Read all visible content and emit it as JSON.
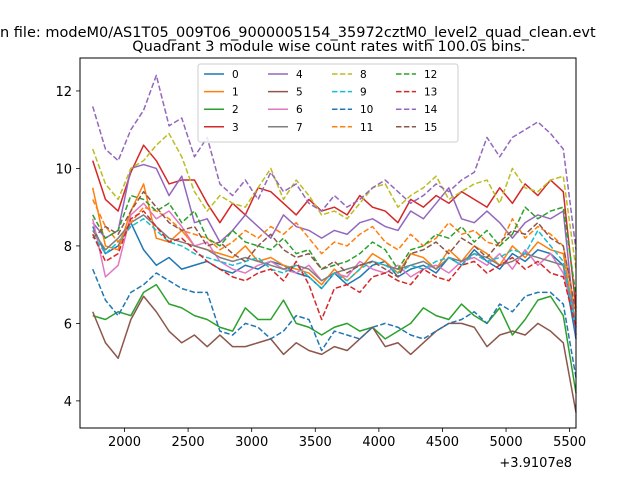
{
  "chart_data": {
    "type": "line",
    "suptitle": "n file: modeM0/AS1T05_009T06_9000005154_35972cztM0_level2_quad_clean.evt",
    "title": "Quadrant 3 module wise count rates with 100.0s bins.",
    "xlabel": "",
    "ylabel": "",
    "x_offset_label": "+3.9107e8",
    "xlim": [
      1650,
      5550
    ],
    "ylim": [
      3.3,
      12.85
    ],
    "xticks": [
      2000,
      2500,
      3000,
      3500,
      4000,
      4500,
      5000,
      5500
    ],
    "yticks": [
      4,
      6,
      8,
      10,
      12
    ],
    "x_start": 1750,
    "x_step": 100,
    "legend": {
      "placement": "top-center",
      "ncol": 4
    },
    "series": [
      {
        "name": "0",
        "color": "#1f77b4",
        "dash": "solid",
        "values": [
          8.5,
          7.8,
          8.0,
          8.6,
          7.9,
          7.5,
          7.7,
          7.4,
          7.5,
          7.6,
          7.4,
          7.3,
          7.5,
          7.4,
          7.6,
          7.5,
          7.3,
          7.2,
          6.9,
          7.3,
          7.0,
          7.2,
          7.5,
          7.6,
          7.2,
          7.4,
          7.5,
          7.3,
          7.7,
          7.5,
          7.9,
          7.6,
          7.4,
          7.8,
          7.6,
          7.9,
          7.8,
          7.5,
          5.6
        ]
      },
      {
        "name": "1",
        "color": "#ff7f0e",
        "dash": "solid",
        "values": [
          9.5,
          8.0,
          7.9,
          8.9,
          9.6,
          8.2,
          8.1,
          8.4,
          8.0,
          7.9,
          7.8,
          7.7,
          8.0,
          7.6,
          7.7,
          7.5,
          7.4,
          7.3,
          7.0,
          7.4,
          7.1,
          7.4,
          7.8,
          7.6,
          7.3,
          7.8,
          7.7,
          7.4,
          7.9,
          7.6,
          8.0,
          7.8,
          7.5,
          8.0,
          7.7,
          8.1,
          7.9,
          7.8,
          5.9
        ]
      },
      {
        "name": "2",
        "color": "#2ca02c",
        "dash": "solid",
        "values": [
          6.2,
          6.1,
          6.3,
          6.2,
          6.8,
          7.0,
          6.5,
          6.4,
          6.2,
          6.1,
          5.9,
          5.8,
          6.4,
          6.1,
          6.1,
          6.6,
          6.0,
          5.9,
          5.7,
          5.9,
          6.0,
          5.8,
          5.9,
          5.6,
          5.8,
          6.0,
          6.4,
          6.2,
          6.1,
          6.5,
          6.2,
          6.0,
          6.4,
          5.7,
          6.1,
          6.6,
          6.7,
          6.2,
          4.2
        ]
      },
      {
        "name": "3",
        "color": "#d62728",
        "dash": "solid",
        "values": [
          10.2,
          9.2,
          8.9,
          9.9,
          10.6,
          10.2,
          9.6,
          9.7,
          9.7,
          9.1,
          8.6,
          9.1,
          8.8,
          9.5,
          9.4,
          9.1,
          8.8,
          9.2,
          8.9,
          9.0,
          8.8,
          9.3,
          9.0,
          8.9,
          8.6,
          9.2,
          9.0,
          9.3,
          9.1,
          9.4,
          9.2,
          9.0,
          9.5,
          9.1,
          9.6,
          9.3,
          9.7,
          9.4,
          6.4
        ]
      },
      {
        "name": "4",
        "color": "#9467bd",
        "dash": "solid",
        "values": [
          8.6,
          8.2,
          8.4,
          10.0,
          10.1,
          10.0,
          9.3,
          9.8,
          8.6,
          8.7,
          8.1,
          8.4,
          8.8,
          8.5,
          8.2,
          8.8,
          8.5,
          8.4,
          8.2,
          8.4,
          8.3,
          8.6,
          8.7,
          8.5,
          8.4,
          8.9,
          8.7,
          9.1,
          9.5,
          8.7,
          8.6,
          8.9,
          8.6,
          8.2,
          8.6,
          8.8,
          8.7,
          8.9,
          5.7
        ]
      },
      {
        "name": "5",
        "color": "#8c564b",
        "dash": "solid",
        "values": [
          6.3,
          5.5,
          5.1,
          6.1,
          6.7,
          6.3,
          5.8,
          5.5,
          5.7,
          5.4,
          5.7,
          5.4,
          5.4,
          5.5,
          5.6,
          5.2,
          5.5,
          5.3,
          5.2,
          5.4,
          5.3,
          5.6,
          5.9,
          5.4,
          5.5,
          5.2,
          5.5,
          5.8,
          6.0,
          6.0,
          5.9,
          5.4,
          5.7,
          5.8,
          5.7,
          6.0,
          5.8,
          5.5,
          3.7
        ]
      },
      {
        "name": "6",
        "color": "#e377c2",
        "dash": "solid",
        "values": [
          8.7,
          7.2,
          7.5,
          8.8,
          9.1,
          8.7,
          8.9,
          8.5,
          8.0,
          8.1,
          7.6,
          7.4,
          7.3,
          7.5,
          7.6,
          7.4,
          7.3,
          7.5,
          7.1,
          7.3,
          7.2,
          7.6,
          7.4,
          7.3,
          7.5,
          7.2,
          7.4,
          7.5,
          7.3,
          7.6,
          7.7,
          7.5,
          7.8,
          7.4,
          7.9,
          7.5,
          7.8,
          7.3,
          6.1
        ]
      },
      {
        "name": "7",
        "color": "#7f7f7f",
        "dash": "solid",
        "values": [
          8.4,
          7.9,
          8.2,
          8.6,
          8.8,
          8.5,
          8.2,
          8.1,
          8.0,
          7.9,
          7.7,
          7.6,
          7.7,
          7.6,
          7.5,
          7.4,
          7.5,
          7.4,
          7.1,
          7.3,
          7.4,
          7.5,
          7.6,
          7.5,
          7.4,
          7.5,
          7.6,
          7.4,
          7.7,
          7.6,
          7.8,
          7.7,
          7.5,
          7.6,
          7.8,
          7.7,
          7.6,
          7.5,
          6.0
        ]
      },
      {
        "name": "8",
        "color": "#bcbd22",
        "dash": "dashed",
        "values": [
          10.5,
          9.6,
          9.2,
          10.0,
          10.2,
          10.6,
          10.9,
          10.3,
          9.4,
          8.9,
          9.3,
          9.1,
          9.0,
          9.5,
          10.0,
          9.2,
          9.7,
          9.3,
          8.8,
          8.9,
          8.7,
          9.1,
          9.5,
          9.6,
          9.0,
          9.3,
          9.5,
          9.8,
          9.2,
          9.4,
          9.6,
          9.7,
          9.1,
          10.0,
          9.5,
          9.4,
          9.7,
          9.8,
          7.4
        ]
      },
      {
        "name": "9",
        "color": "#17becf",
        "dash": "dashed",
        "values": [
          8.3,
          7.8,
          8.1,
          8.5,
          8.7,
          8.4,
          8.1,
          8.0,
          7.8,
          7.7,
          7.6,
          7.5,
          7.6,
          7.7,
          7.4,
          7.3,
          7.5,
          7.2,
          6.9,
          7.3,
          7.1,
          7.4,
          7.6,
          7.5,
          7.3,
          7.5,
          7.4,
          7.6,
          7.7,
          7.5,
          7.8,
          7.6,
          7.7,
          7.9,
          7.8,
          8.4,
          8.0,
          7.6,
          5.9
        ]
      },
      {
        "name": "10",
        "color": "#1f77b4",
        "dash": "dashed",
        "values": [
          7.4,
          6.6,
          6.2,
          6.8,
          7.0,
          7.3,
          7.1,
          6.9,
          6.8,
          6.8,
          5.8,
          5.7,
          6.0,
          5.9,
          5.6,
          5.8,
          6.2,
          6.1,
          5.3,
          5.8,
          5.7,
          5.6,
          5.9,
          6.0,
          5.9,
          5.7,
          5.6,
          5.8,
          6.0,
          6.1,
          6.3,
          6.0,
          6.5,
          6.3,
          6.7,
          6.8,
          6.8,
          6.5,
          4.6
        ]
      },
      {
        "name": "11",
        "color": "#ff7f0e",
        "dash": "dashed",
        "values": [
          9.2,
          8.5,
          8.1,
          8.6,
          9.0,
          8.9,
          8.7,
          8.4,
          8.3,
          8.2,
          7.9,
          8.1,
          8.4,
          8.2,
          8.5,
          8.3,
          8.6,
          8.2,
          7.8,
          8.1,
          8.0,
          8.3,
          8.5,
          8.1,
          7.9,
          8.3,
          8.0,
          8.2,
          8.6,
          8.3,
          8.4,
          8.1,
          8.0,
          8.7,
          8.2,
          8.5,
          8.3,
          8.0,
          6.2
        ]
      },
      {
        "name": "12",
        "color": "#2ca02c",
        "dash": "dashed",
        "values": [
          8.8,
          8.2,
          8.4,
          9.3,
          9.2,
          8.9,
          9.1,
          8.6,
          8.9,
          8.2,
          8.0,
          8.4,
          8.1,
          8.0,
          7.9,
          8.2,
          7.8,
          7.9,
          7.4,
          7.5,
          7.6,
          7.8,
          8.1,
          7.9,
          7.4,
          7.9,
          8.0,
          8.3,
          8.2,
          8.5,
          8.1,
          8.4,
          8.0,
          8.3,
          9.0,
          8.7,
          8.9,
          9.0,
          6.7
        ]
      },
      {
        "name": "13",
        "color": "#d62728",
        "dash": "dashed",
        "values": [
          8.3,
          7.6,
          7.8,
          8.7,
          8.9,
          8.5,
          8.1,
          8.2,
          7.9,
          7.6,
          7.4,
          7.2,
          7.1,
          7.3,
          7.4,
          7.1,
          7.6,
          7.0,
          6.1,
          6.9,
          7.0,
          6.8,
          7.2,
          7.3,
          7.1,
          7.0,
          7.4,
          7.2,
          7.1,
          7.5,
          7.6,
          7.3,
          7.5,
          7.7,
          7.4,
          7.6,
          7.3,
          7.2,
          5.9
        ]
      },
      {
        "name": "14",
        "color": "#9467bd",
        "dash": "dashed",
        "values": [
          11.6,
          10.5,
          10.2,
          11.0,
          11.5,
          12.4,
          11.1,
          11.3,
          10.3,
          10.8,
          9.6,
          9.3,
          9.7,
          9.2,
          9.9,
          9.4,
          9.6,
          9.1,
          8.9,
          9.3,
          9.0,
          9.2,
          9.5,
          9.7,
          9.4,
          9.1,
          9.3,
          9.6,
          9.4,
          9.7,
          9.9,
          10.8,
          10.3,
          10.8,
          11.0,
          11.2,
          10.9,
          10.5,
          7.9
        ]
      },
      {
        "name": "15",
        "color": "#8c564b",
        "dash": "dashed",
        "values": [
          8.2,
          8.5,
          8.3,
          8.9,
          9.4,
          9.0,
          8.6,
          8.4,
          8.5,
          8.0,
          8.1,
          7.8,
          7.6,
          8.0,
          8.3,
          7.9,
          7.7,
          7.8,
          7.4,
          7.6,
          7.3,
          7.5,
          7.6,
          7.4,
          7.2,
          7.8,
          7.9,
          8.1,
          7.8,
          8.2,
          8.0,
          7.7,
          8.1,
          8.4,
          8.3,
          8.6,
          8.2,
          8.0,
          6.3
        ]
      }
    ]
  }
}
